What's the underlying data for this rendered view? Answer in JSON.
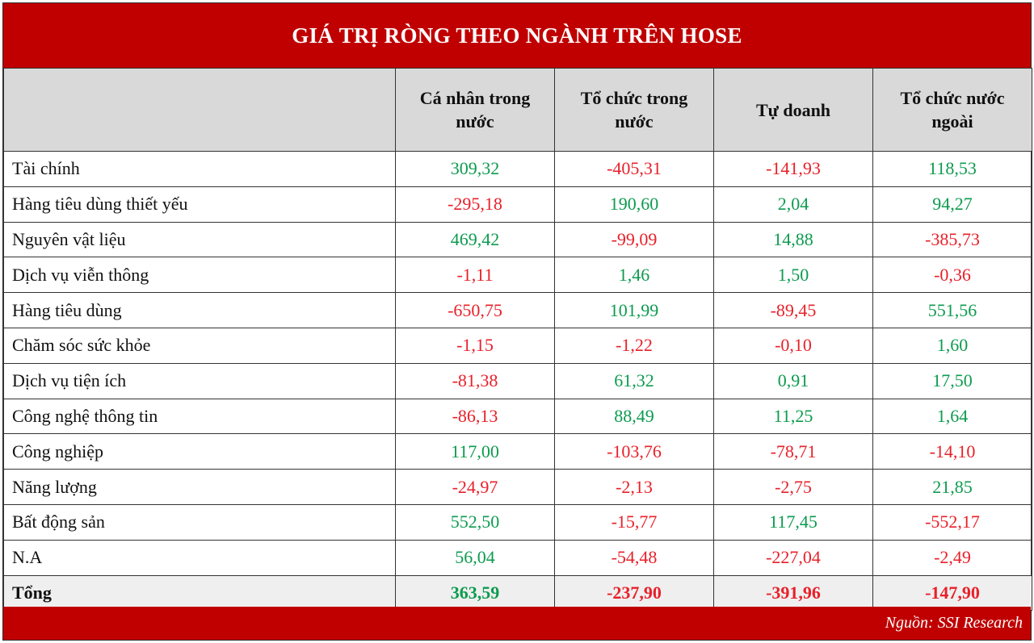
{
  "title": "GIÁ TRỊ RÒNG THEO NGÀNH TRÊN HOSE",
  "columns": [
    "",
    "Cá nhân trong nước",
    "Tổ chức trong nước",
    "Tự doanh",
    "Tổ chức nước ngoài"
  ],
  "rows": [
    {
      "sector": "Tài chính",
      "values": [
        "309,32",
        "-405,31",
        "-141,93",
        "118,53"
      ]
    },
    {
      "sector": "Hàng tiêu dùng thiết yếu",
      "values": [
        "-295,18",
        "190,60",
        "2,04",
        "94,27"
      ]
    },
    {
      "sector": "Nguyên vật liệu",
      "values": [
        "469,42",
        "-99,09",
        "14,88",
        "-385,73"
      ]
    },
    {
      "sector": "Dịch vụ viễn thông",
      "values": [
        "-1,11",
        "1,46",
        "1,50",
        "-0,36"
      ]
    },
    {
      "sector": "Hàng tiêu dùng",
      "values": [
        "-650,75",
        "101,99",
        "-89,45",
        "551,56"
      ]
    },
    {
      "sector": "Chăm sóc sức khỏe",
      "values": [
        "-1,15",
        "-1,22",
        "-0,10",
        "1,60"
      ]
    },
    {
      "sector": "Dịch vụ tiện ích",
      "values": [
        "-81,38",
        "61,32",
        "0,91",
        "17,50"
      ]
    },
    {
      "sector": "Công nghệ thông tin",
      "values": [
        "-86,13",
        "88,49",
        "11,25",
        "1,64"
      ]
    },
    {
      "sector": "Công nghiệp",
      "values": [
        "117,00",
        "-103,76",
        "-78,71",
        "-14,10"
      ]
    },
    {
      "sector": "Năng lượng",
      "values": [
        "-24,97",
        "-2,13",
        "-2,75",
        "21,85"
      ]
    },
    {
      "sector": "Bất động sản",
      "values": [
        "552,50",
        "-15,77",
        "117,45",
        "-552,17"
      ]
    },
    {
      "sector": "N.A",
      "values": [
        "56,04",
        "-54,48",
        "-227,04",
        "-2,49"
      ]
    }
  ],
  "total": {
    "sector": "Tổng",
    "values": [
      "363,59",
      "-237,90",
      "-391,96",
      "-147,90"
    ]
  },
  "source": "Nguồn: SSI Research",
  "colors": {
    "header_bg": "#c00000",
    "positive": "#0d9b4f",
    "negative": "#e8202a",
    "column_header_bg": "#d9d9d9"
  }
}
